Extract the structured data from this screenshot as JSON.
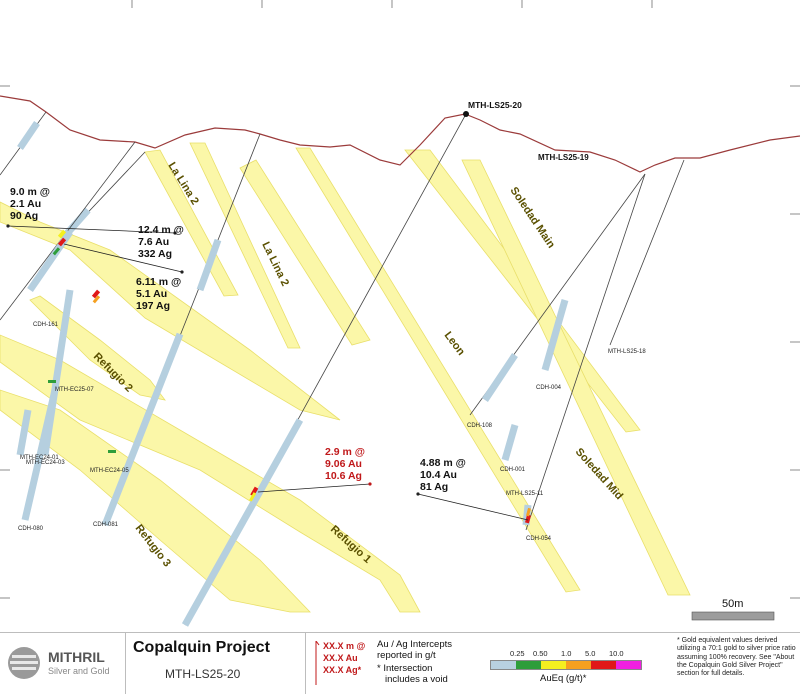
{
  "map": {
    "drillholes": {
      "main": "MTH-LS25-20",
      "ls25_19": "MTH-LS25-19",
      "ls25_18": "MTH-LS25-18",
      "cdh161": "CDH-161",
      "ec25_07": "MTH-EC25-07",
      "ec24_01": "MTH-EC24-01",
      "ec24_03": "MTH-EC24-03",
      "ec24_05": "MTH-EC24-05",
      "cdh080": "CDH-080",
      "cdh081": "CDH-081",
      "cdh108": "CDH-108",
      "cdh004": "CDH-004",
      "cdh001": "CDH-001",
      "ls25_11": "MTH-LS25-11",
      "cdh054": "CDH-054"
    },
    "veins": {
      "la_lina_2_a": "La Lina 2",
      "la_lina_2_b": "La Lina 2",
      "soledad_main": "Soledad Main",
      "leon": "Leon",
      "refugio_2": "Refugio 2",
      "refugio_1": "Refugio 1",
      "refugio_3": "Refugio 3",
      "soledad_mid": "Soledad Mid"
    },
    "intercepts": {
      "i1": [
        "9.0 m @",
        "2.1 Au",
        "90 Ag"
      ],
      "i2": [
        "12.4 m @",
        "7.6 Au",
        "332 Ag"
      ],
      "i3": [
        "6.11 m @",
        "5.1 Au",
        "197 Ag"
      ],
      "i4": [
        "2.9 m @",
        "9.06 Au",
        "10.6 Ag"
      ],
      "i5": [
        "4.88 m @",
        "10.4 Au",
        "81 Ag"
      ]
    },
    "scale_bar": "50m"
  },
  "legend": {
    "logo_name": "MITHRIL",
    "logo_sub": "Silver and Gold",
    "project_title": "Copalquin Project",
    "section_name": "MTH-LS25-20",
    "sample_lines": [
      "XX.X m @",
      "XX.X Au",
      "XX.X Ag*"
    ],
    "intercept_note_1": "Au / Ag Intercepts",
    "intercept_note_2": "reported in g/t",
    "void_note_1": "* Intersection",
    "void_note_2": "includes a void",
    "ramp_ticks": [
      "0.25",
      "0.50",
      "1.0",
      "5.0",
      "10.0"
    ],
    "ramp_colors": [
      "#b8d0e0",
      "#2e9d3a",
      "#f4ef20",
      "#f5a020",
      "#e01818",
      "#f020e0"
    ],
    "ramp_label": "AuEq (g/t)*",
    "footnote": "* Gold equivalent values derived utilizing a 70:1 gold to silver price ratio assuming 100% recovery. See \"About the Copalquin Gold Silver Project\" section for full details."
  },
  "colors": {
    "topography": "#9b3b3b",
    "vein_fill": "#fbf7a8",
    "hole_trace": "#b5cfdf",
    "highlight": "#c0181a"
  }
}
